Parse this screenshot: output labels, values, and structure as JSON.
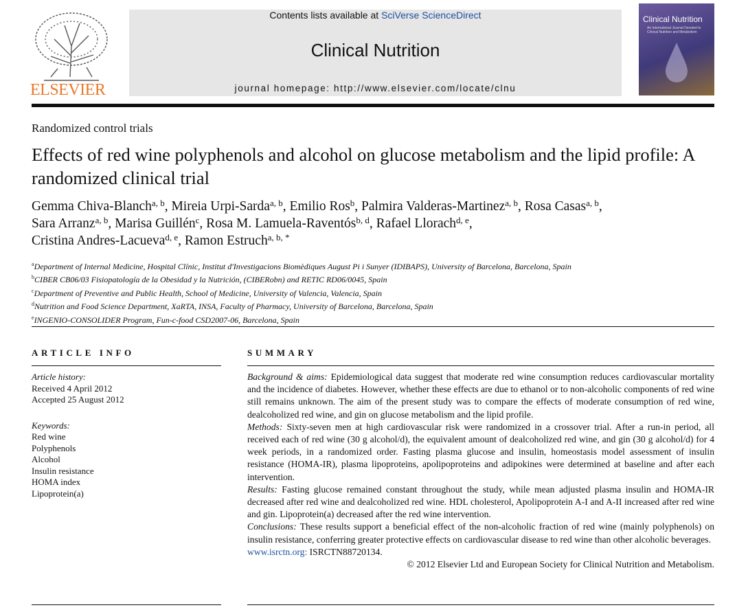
{
  "header": {
    "contents_prefix": "Contents lists available at",
    "contents_link": "SciVerse ScienceDirect",
    "journal": "Clinical Nutrition",
    "homepage_prefix": "journal homepage:",
    "homepage_url": "http://www.elsevier.com/locate/clnu",
    "publisher": "ELSEVIER",
    "cover_title": "Clinical Nutrition",
    "cover_subtitle": "An International Journal Devoted to Clinical Nutrition and Metabolism"
  },
  "article_type": "Randomized control trials",
  "title": "Effects of red wine polyphenols and alcohol on glucose metabolism and the lipid profile: A randomized clinical trial",
  "authors": {
    "separator": ",",
    "lines": [
      [
        {
          "name": "Gemma Chiva-Blanch",
          "affil": "a, b"
        },
        {
          "name": "Mireia Urpi-Sarda",
          "affil": "a, b"
        },
        {
          "name": "Emilio Ros",
          "affil": "b"
        },
        {
          "name": "Palmira Valderas-Martinez",
          "affil": "a, b"
        },
        {
          "name": "Rosa Casas",
          "affil": "a, b"
        }
      ],
      [
        {
          "name": "Sara Arranz",
          "affil": "a, b"
        },
        {
          "name": "Marisa Guillén",
          "affil": "c"
        },
        {
          "name": "Rosa M. Lamuela-Raventós",
          "affil": "b, d"
        },
        {
          "name": "Rafael Llorach",
          "affil": "d, e"
        }
      ],
      [
        {
          "name": "Cristina Andres-Lacueva",
          "affil": "d, e"
        },
        {
          "name": "Ramon Estruch",
          "affil": "a, b, *"
        }
      ]
    ]
  },
  "affiliations": [
    {
      "label": "a",
      "text": "Department of Internal Medicine, Hospital Clínic, Institut d'Investigacions Biomèdiques August Pi i Sunyer (IDIBAPS), University of Barcelona, Barcelona, Spain"
    },
    {
      "label": "b",
      "text": "CIBER CB06/03 Fisiopatología de la Obesidad y la Nutrición, (CIBERobn) and RETIC RD06/0045, Spain"
    },
    {
      "label": "c",
      "text": "Department of Preventive and Public Health, School of Medicine, University of Valencia, Valencia, Spain"
    },
    {
      "label": "d",
      "text": "Nutrition and Food Science Department, XaRTA, INSA, Faculty of Pharmacy, University of Barcelona, Barcelona, Spain"
    },
    {
      "label": "e",
      "text": "INGENIO-CONSOLIDER Program, Fun-c-food CSD2007-06, Barcelona, Spain"
    }
  ],
  "article_info": {
    "heading": "ARTICLE INFO",
    "history_label": "Article history:",
    "history": [
      "Received 4 April 2012",
      "Accepted 25 August 2012"
    ],
    "keywords_label": "Keywords:",
    "keywords": [
      "Red wine",
      "Polyphenols",
      "Alcohol",
      "Insulin resistance",
      "HOMA index",
      "Lipoprotein(a)"
    ]
  },
  "summary": {
    "heading": "SUMMARY",
    "paragraphs": [
      {
        "label": "Background & aims:",
        "text": "Epidemiological data suggest that moderate red wine consumption reduces cardiovascular mortality and the incidence of diabetes. However, whether these effects are due to ethanol or to non-alcoholic components of red wine still remains unknown. The aim of the present study was to compare the effects of moderate consumption of red wine, dealcoholized red wine, and gin on glucose metabolism and the lipid profile."
      },
      {
        "label": "Methods:",
        "text": "Sixty-seven men at high cardiovascular risk were randomized in a crossover trial. After a run-in period, all received each of red wine (30 g alcohol/d), the equivalent amount of dealcoholized red wine, and gin (30 g alcohol/d) for 4 week periods, in a randomized order. Fasting plasma glucose and insulin, homeostasis model assessment of insulin resistance (HOMA-IR), plasma lipoproteins, apolipoproteins and adipokines were determined at baseline and after each intervention."
      },
      {
        "label": "Results:",
        "text": "Fasting glucose remained constant throughout the study, while mean adjusted plasma insulin and HOMA-IR decreased after red wine and dealcoholized red wine. HDL cholesterol, Apolipoprotein A-I and A-II increased after red wine and gin. Lipoprotein(a) decreased after the red wine intervention."
      },
      {
        "label": "Conclusions:",
        "text": "These results support a beneficial effect of the non-alcoholic fraction of red wine (mainly polyphenols) on insulin resistance, conferring greater protective effects on cardiovascular disease to red wine than other alcoholic beverages."
      }
    ],
    "registry_link": "www.isrctn.org:",
    "registry_id": "ISRCTN88720134.",
    "copyright": "© 2012 Elsevier Ltd and European Society for Clinical Nutrition and Metabolism."
  }
}
